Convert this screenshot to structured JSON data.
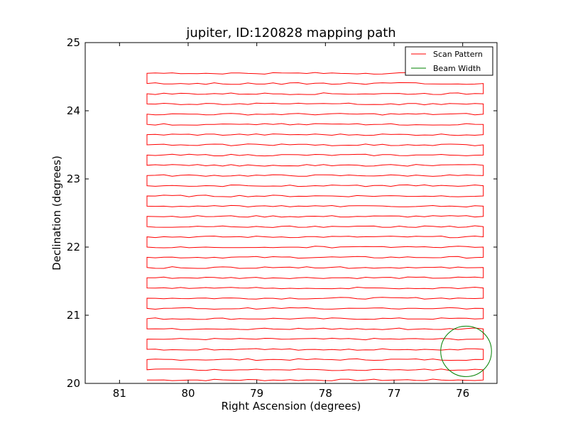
{
  "chart_data": {
    "type": "line",
    "title": "jupiter, ID:120828 mapping path",
    "xlabel": "Right Ascension (degrees)",
    "ylabel": "Declination (degrees)",
    "xlim": [
      81.5,
      75.5
    ],
    "ylim": [
      20,
      25
    ],
    "x_inverted": true,
    "xticks": [
      81,
      80,
      79,
      78,
      77,
      76
    ],
    "yticks": [
      20,
      21,
      22,
      23,
      24,
      25
    ],
    "xtick_labels": [
      "81",
      "80",
      "79",
      "78",
      "77",
      "76"
    ],
    "ytick_labels": [
      "20",
      "21",
      "22",
      "23",
      "24",
      "25"
    ],
    "grid": false,
    "legend_position": "top-right",
    "series": [
      {
        "name": "Scan Pattern",
        "color": "#ff0000",
        "style": "boustrophedon raster scan",
        "ra_start": 80.6,
        "ra_end": 75.7,
        "dec_rows": [
          20.05,
          20.2,
          20.35,
          20.5,
          20.65,
          20.8,
          20.95,
          21.1,
          21.25,
          21.4,
          21.55,
          21.7,
          21.85,
          22.0,
          22.15,
          22.3,
          22.45,
          22.6,
          22.75,
          22.9,
          23.05,
          23.2,
          23.35,
          23.5,
          23.65,
          23.8,
          23.95,
          24.1,
          24.25,
          24.4,
          24.55
        ]
      },
      {
        "name": "Beam Width",
        "color": "#008000",
        "type": "circle",
        "center_ra": 75.95,
        "center_dec": 20.47,
        "radius_deg": 0.37
      }
    ]
  }
}
